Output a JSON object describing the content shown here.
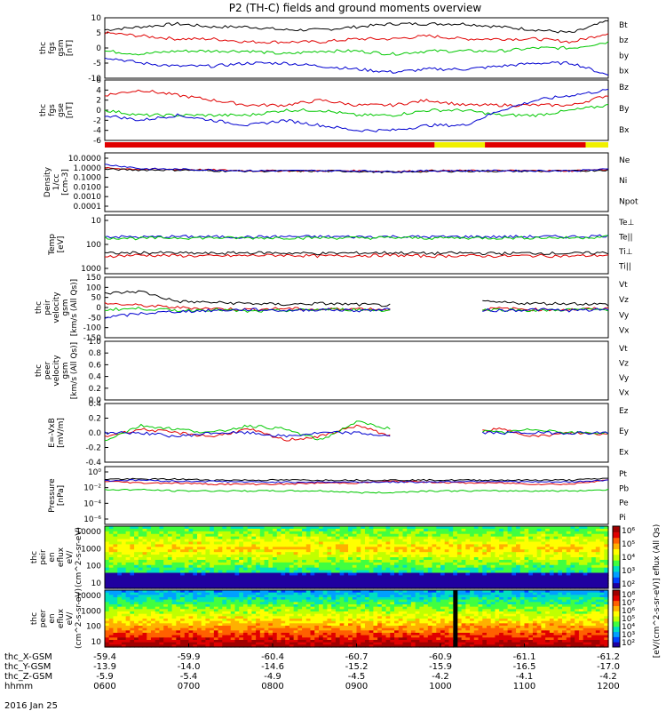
{
  "title": "P2 (TH-C) fields and ground moments overview",
  "date_label": "2016 Jan 25",
  "colors": {
    "black": "#000000",
    "red": "#e00000",
    "green": "#00c800",
    "blue": "#0000d0",
    "yellow": "#f0f000"
  },
  "chart_data": [
    {
      "type": "line",
      "name": "fgs",
      "ylabel": [
        "thc",
        "fgs",
        "gsm",
        "[nT]"
      ],
      "ylim": [
        -10,
        10
      ],
      "yticks": [
        -10,
        -5,
        0,
        5,
        10
      ],
      "series": [
        {
          "name": "Bt",
          "color": "#000000",
          "values": [
            6,
            7,
            8,
            7,
            7,
            6,
            6,
            7,
            8,
            8,
            8,
            7,
            6,
            5,
            9
          ]
        },
        {
          "name": "bz",
          "color": "#e00000",
          "values": [
            5,
            4,
            3,
            3,
            2,
            2,
            2,
            3,
            3,
            4,
            3,
            3,
            3,
            2,
            5
          ]
        },
        {
          "name": "by",
          "color": "#00c800",
          "values": [
            -1,
            -2,
            -1,
            -1,
            -1,
            -2,
            -1,
            -1,
            -2,
            -1,
            -1,
            -1,
            0,
            0,
            2
          ]
        },
        {
          "name": "bx",
          "color": "#0000d0",
          "values": [
            -3,
            -5,
            -6,
            -6,
            -5,
            -5,
            -6,
            -7,
            -8,
            -7,
            -7,
            -6,
            -5,
            -5,
            -9
          ]
        }
      ]
    },
    {
      "type": "line",
      "name": "fgs-gse",
      "ylabel": [
        "thc",
        "fgs",
        "gse",
        "[nT]"
      ],
      "ylim": [
        -6,
        6
      ],
      "yticks": [
        -6,
        -4,
        -2,
        0,
        2,
        4,
        6
      ],
      "series": [
        {
          "name": "Bz",
          "color": "#e00000",
          "values": [
            3,
            4,
            3,
            2,
            1,
            1,
            2,
            1,
            1,
            2,
            1,
            1,
            1,
            1,
            3
          ]
        },
        {
          "name": "By",
          "color": "#00c800",
          "values": [
            0,
            -1,
            -1,
            -1,
            -1,
            0,
            0,
            -1,
            -1,
            0,
            0,
            -1,
            -1,
            0,
            1
          ]
        },
        {
          "name": "Bx",
          "color": "#0000d0",
          "values": [
            -1,
            -2,
            -1,
            -2,
            -3,
            -2,
            -3,
            -4,
            -4,
            -3,
            -3,
            0,
            2,
            3,
            4
          ]
        }
      ]
    },
    {
      "type": "bar",
      "name": "mode-bar",
      "segments": [
        {
          "start": 0.0,
          "end": 0.655,
          "color": "#e00000"
        },
        {
          "start": 0.655,
          "end": 0.755,
          "color": "#f0f000"
        },
        {
          "start": 0.755,
          "end": 0.955,
          "color": "#e00000"
        },
        {
          "start": 0.955,
          "end": 1.0,
          "color": "#f0f000"
        }
      ]
    },
    {
      "type": "line",
      "name": "density",
      "log": true,
      "ylabel": [
        "Density",
        "1/cc",
        "[cm-3]"
      ],
      "ylim": [
        0.0001,
        10
      ],
      "yticks": [
        "10.0000",
        "1.0000",
        "0.1000",
        "0.0100",
        "0.0010",
        "0.0001"
      ],
      "series": [
        {
          "name": "Ne",
          "color": "#e00000",
          "values": [
            0.5,
            0.4,
            0.4,
            0.35,
            0.3,
            0.3,
            0.3,
            0.3,
            0.25,
            0.3,
            0.3,
            0.3,
            0.3,
            0.3,
            0.4
          ]
        },
        {
          "name": "Ni",
          "color": "#000000",
          "values": [
            0.4,
            0.35,
            0.35,
            0.3,
            0.28,
            0.28,
            0.28,
            0.27,
            0.22,
            0.27,
            0.28,
            0.28,
            0.28,
            0.28,
            0.35
          ]
        },
        {
          "name": "Npot",
          "color": "#0000d0",
          "values": [
            1.0,
            0.45,
            0.4,
            0.35,
            0.3,
            0.3,
            0.3,
            0.3,
            0.25,
            0.3,
            0.3,
            0.3,
            0.3,
            0.3,
            0.4
          ]
        }
      ]
    },
    {
      "type": "line",
      "name": "temperature",
      "log": true,
      "ylabel": [
        "Temp",
        "[eV]"
      ],
      "ylim": [
        10,
        10000
      ],
      "yticks": [
        "10",
        "100",
        "1000"
      ],
      "series": [
        {
          "name": "Te⊥",
          "color": "#e00000",
          "values": [
            80,
            90,
            85,
            80,
            85,
            90,
            80,
            85,
            90,
            80,
            85,
            80,
            85,
            80,
            90
          ]
        },
        {
          "name": "Te||",
          "color": "#000000",
          "values": [
            110,
            120,
            115,
            110,
            120,
            115,
            110,
            115,
            120,
            110,
            115,
            110,
            115,
            110,
            120
          ]
        },
        {
          "name": "Ti⊥",
          "color": "#0000d0",
          "values": [
            800,
            750,
            800,
            780,
            760,
            800,
            790,
            780,
            800,
            770,
            790,
            780,
            800,
            790,
            900
          ]
        },
        {
          "name": "Ti||",
          "color": "#00c800",
          "values": [
            700,
            650,
            700,
            690,
            680,
            700,
            690,
            680,
            700,
            670,
            690,
            680,
            700,
            690,
            800
          ]
        }
      ]
    },
    {
      "type": "line",
      "name": "peir-velocity",
      "ylabel": [
        "thc",
        "peir",
        "velocity",
        "gsm",
        "[km/s (All Qs)]"
      ],
      "ylim": [
        -150,
        150
      ],
      "yticks": [
        -150,
        -100,
        -50,
        0,
        50,
        100,
        150
      ],
      "gap": [
        0.64,
        0.75
      ],
      "series": [
        {
          "name": "Vt",
          "color": "#000000",
          "values": [
            70,
            80,
            30,
            25,
            20,
            15,
            20,
            15,
            10,
            null,
            30,
            25,
            20,
            20,
            15
          ]
        },
        {
          "name": "Vz",
          "color": "#e00000",
          "values": [
            20,
            10,
            0,
            -5,
            -10,
            -5,
            -10,
            -5,
            -10,
            null,
            -10,
            -5,
            -10,
            -10,
            -5
          ]
        },
        {
          "name": "Vy",
          "color": "#00c800",
          "values": [
            -10,
            -5,
            -15,
            -10,
            -20,
            -15,
            -10,
            -10,
            -15,
            null,
            -15,
            -10,
            -15,
            -10,
            -10
          ]
        },
        {
          "name": "Vx",
          "color": "#0000d0",
          "values": [
            -50,
            -30,
            -20,
            -15,
            -10,
            -15,
            -10,
            -15,
            -10,
            null,
            -10,
            -15,
            -10,
            -15,
            -10
          ]
        }
      ]
    },
    {
      "type": "line",
      "name": "peer-velocity",
      "ylabel": [
        "thc",
        "peer",
        "velocity",
        "gsm",
        "[km/s (All Qs)]"
      ],
      "ylim": [
        0,
        1
      ],
      "yticks": [
        "0.0",
        "0.2",
        "0.4",
        "0.6",
        "0.8",
        "1.0"
      ],
      "series": [
        {
          "name": "Vt",
          "color": "#000000",
          "values": []
        },
        {
          "name": "Vz",
          "color": "#e00000",
          "values": []
        },
        {
          "name": "Vy",
          "color": "#00c800",
          "values": []
        },
        {
          "name": "Vx",
          "color": "#0000d0",
          "values": []
        }
      ]
    },
    {
      "type": "line",
      "name": "e-field",
      "ylabel": [
        "E=-VxB",
        "[mV/m]"
      ],
      "ylim": [
        -0.4,
        0.4
      ],
      "yticks": [
        "-0.4",
        "-0.2",
        "0.0",
        "0.2",
        "0.4"
      ],
      "gap": [
        0.64,
        0.75
      ],
      "series": [
        {
          "name": "Ez",
          "color": "#e00000",
          "values": [
            -0.05,
            0.05,
            0.0,
            -0.05,
            0.05,
            -0.1,
            -0.05,
            0.1,
            -0.05,
            null,
            0.0,
            0.05,
            -0.05,
            0.0,
            -0.02
          ]
        },
        {
          "name": "Ey",
          "color": "#00c800",
          "values": [
            -0.1,
            0.1,
            0.05,
            0.0,
            0.1,
            0.05,
            -0.1,
            0.15,
            0.05,
            null,
            0.05,
            0.0,
            0.05,
            0.0,
            0.0
          ]
        },
        {
          "name": "Ex",
          "color": "#0000d0",
          "values": [
            0.0,
            0.0,
            -0.05,
            0.0,
            0.0,
            -0.05,
            0.0,
            0.0,
            -0.05,
            null,
            0.0,
            0.0,
            0.0,
            0.0,
            0.0
          ]
        }
      ]
    },
    {
      "type": "line",
      "name": "pressure",
      "log": true,
      "ylabel": [
        "Pressure",
        "[nPa]"
      ],
      "ylim": [
        1e-06,
        1
      ],
      "yticks": [
        "10^0",
        "10^-2",
        "10^-4",
        "10^-6"
      ],
      "series": [
        {
          "name": "Pt",
          "color": "#000000",
          "values": [
            0.05,
            0.05,
            0.05,
            0.04,
            0.04,
            0.04,
            0.04,
            0.04,
            0.04,
            0.04,
            0.04,
            0.04,
            0.04,
            0.04,
            0.06
          ]
        },
        {
          "name": "Pb",
          "color": "#e00000",
          "values": [
            0.03,
            0.02,
            0.02,
            0.015,
            0.015,
            0.015,
            0.02,
            0.02,
            0.03,
            0.025,
            0.02,
            0.02,
            0.015,
            0.015,
            0.04
          ]
        },
        {
          "name": "Pe",
          "color": "#00c800",
          "values": [
            0.004,
            0.004,
            0.003,
            0.003,
            0.003,
            0.003,
            0.003,
            0.002,
            0.002,
            0.003,
            0.003,
            0.003,
            0.003,
            0.003,
            0.004
          ]
        },
        {
          "name": "Pi",
          "color": "#0000d0",
          "values": [
            0.035,
            0.04,
            0.03,
            0.03,
            0.025,
            0.025,
            0.025,
            0.025,
            0.025,
            0.025,
            0.03,
            0.03,
            0.025,
            0.025,
            0.04
          ]
        }
      ]
    },
    {
      "type": "heatmap",
      "name": "peir-spectrogram",
      "ylabel": [
        "thc",
        "peir",
        "en",
        "eflux",
        "eV/",
        "(cm^2-s-sr-eV)"
      ],
      "ylim": [
        10,
        10000
      ],
      "yticks": [
        "10000",
        "1000",
        "100",
        "10"
      ]
    },
    {
      "type": "heatmap",
      "name": "peer-spectrogram",
      "ylabel": [
        "thc",
        "peer",
        "en",
        "eflux",
        "eV/",
        "(cm^2-s-sr-eV)"
      ],
      "ylim": [
        10,
        10000
      ],
      "yticks": [
        "10000",
        "1000",
        "100",
        "10"
      ]
    }
  ],
  "colorbar": {
    "label": "[eV/(cm^2-s-sr-eV)] eflux (All Qs)",
    "ticks_top": [
      "10^6",
      "10^5",
      "10^4",
      "10^3",
      "10^2"
    ],
    "ticks_bottom": [
      "10^8",
      "10^7",
      "10^6",
      "10^5",
      "10^4",
      "10^3",
      "10^2"
    ]
  },
  "xaxis": {
    "row_labels": [
      "thc_X-GSM",
      "thc_Y-GSM",
      "thc_Z-GSM",
      "hhmm"
    ],
    "columns": [
      [
        "-59.4",
        "-13.9",
        "-5.9",
        "0600"
      ],
      [
        "-59.9",
        "-14.0",
        "-5.4",
        "0700"
      ],
      [
        "-60.4",
        "-14.6",
        "-4.9",
        "0800"
      ],
      [
        "-60.7",
        "-15.2",
        "-4.5",
        "0900"
      ],
      [
        "-60.9",
        "-15.9",
        "-4.2",
        "1000"
      ],
      [
        "-61.1",
        "-16.5",
        "-4.1",
        "1100"
      ],
      [
        "-61.2",
        "-17.0",
        "-4.2",
        "1200"
      ]
    ]
  }
}
